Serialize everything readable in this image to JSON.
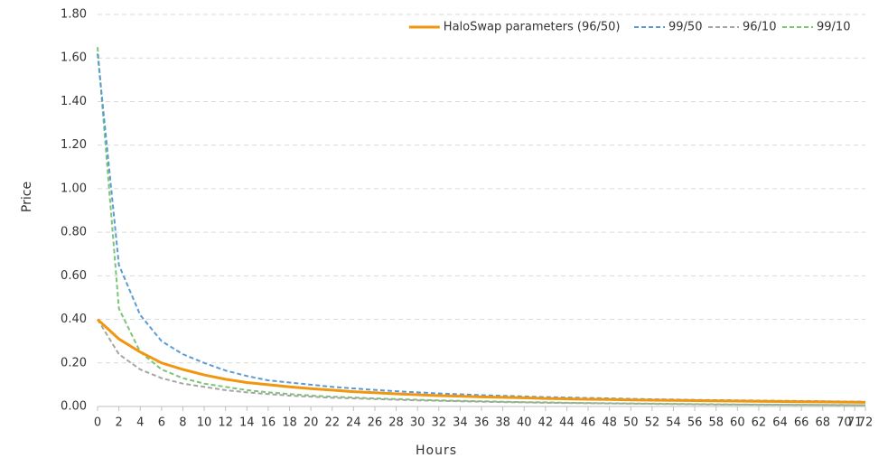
{
  "chart_data": {
    "type": "line",
    "x_label": "Hours",
    "y_label": "Price",
    "x": [
      0,
      2,
      4,
      6,
      8,
      10,
      12,
      14,
      16,
      18,
      20,
      22,
      24,
      26,
      28,
      30,
      32,
      34,
      36,
      38,
      40,
      42,
      44,
      46,
      48,
      50,
      52,
      54,
      56,
      58,
      60,
      62,
      64,
      66,
      68,
      70,
      72
    ],
    "xlim": [
      0,
      72
    ],
    "xticks": [
      0,
      2,
      4,
      6,
      8,
      10,
      12,
      14,
      16,
      18,
      20,
      22,
      24,
      26,
      28,
      30,
      32,
      34,
      36,
      38,
      40,
      42,
      44,
      46,
      48,
      50,
      52,
      54,
      56,
      58,
      60,
      62,
      64,
      66,
      68,
      70,
      71,
      72
    ],
    "ylim": [
      0,
      1.8
    ],
    "yticks": [
      {
        "value": 0,
        "label": "0.00"
      },
      {
        "value": 0.2,
        "label": "0.20"
      },
      {
        "value": 0.4,
        "label": "0.40"
      },
      {
        "value": 0.6,
        "label": "0.60"
      },
      {
        "value": 0.8,
        "label": "0.80"
      },
      {
        "value": 1,
        "label": "1.00"
      },
      {
        "value": 1.2,
        "label": "1.20"
      },
      {
        "value": 1.4,
        "label": "1.40"
      },
      {
        "value": 1.6,
        "label": "1.60"
      },
      {
        "value": 1.8,
        "label": "1.80"
      }
    ],
    "grid": true,
    "legend": "top-right",
    "series": [
      {
        "name": "HaloSwap parameters (96/50)",
        "color": "#f0960f",
        "dashed": false,
        "values": [
          0.4,
          0.31,
          0.25,
          0.2,
          0.17,
          0.145,
          0.125,
          0.11,
          0.1,
          0.09,
          0.082,
          0.075,
          0.068,
          0.063,
          0.058,
          0.054,
          0.05,
          0.047,
          0.044,
          0.042,
          0.04,
          0.037,
          0.035,
          0.033,
          0.032,
          0.03,
          0.029,
          0.028,
          0.027,
          0.026,
          0.025,
          0.024,
          0.023,
          0.022,
          0.021,
          0.02,
          0.019
        ]
      },
      {
        "name": "99/50",
        "color": "#5b9bd5",
        "dashed": true,
        "values": [
          1.62,
          0.65,
          0.42,
          0.3,
          0.24,
          0.2,
          0.165,
          0.14,
          0.12,
          0.11,
          0.1,
          0.09,
          0.083,
          0.076,
          0.07,
          0.065,
          0.06,
          0.056,
          0.052,
          0.049,
          0.046,
          0.043,
          0.041,
          0.039,
          0.037,
          0.035,
          0.033,
          0.032,
          0.03,
          0.029,
          0.028,
          0.027,
          0.026,
          0.025,
          0.024,
          0.023,
          0.022
        ]
      },
      {
        "name": "96/10",
        "color": "#a5a5a5",
        "dashed": true,
        "values": [
          0.4,
          0.24,
          0.17,
          0.13,
          0.105,
          0.09,
          0.075,
          0.065,
          0.057,
          0.05,
          0.045,
          0.04,
          0.037,
          0.034,
          0.031,
          0.028,
          0.026,
          0.024,
          0.022,
          0.02,
          0.019,
          0.017,
          0.016,
          0.015,
          0.014,
          0.013,
          0.012,
          0.011,
          0.01,
          0.009,
          0.009,
          0.008,
          0.008,
          0.007,
          0.007,
          0.006,
          0.006
        ]
      },
      {
        "name": "99/10",
        "color": "#7cc575",
        "dashed": true,
        "values": [
          1.65,
          0.45,
          0.25,
          0.17,
          0.13,
          0.105,
          0.09,
          0.075,
          0.065,
          0.057,
          0.05,
          0.045,
          0.041,
          0.037,
          0.034,
          0.031,
          0.028,
          0.026,
          0.024,
          0.022,
          0.02,
          0.019,
          0.017,
          0.016,
          0.015,
          0.014,
          0.013,
          0.012,
          0.011,
          0.01,
          0.009,
          0.009,
          0.008,
          0.008,
          0.007,
          0.007,
          0.006
        ]
      }
    ]
  }
}
